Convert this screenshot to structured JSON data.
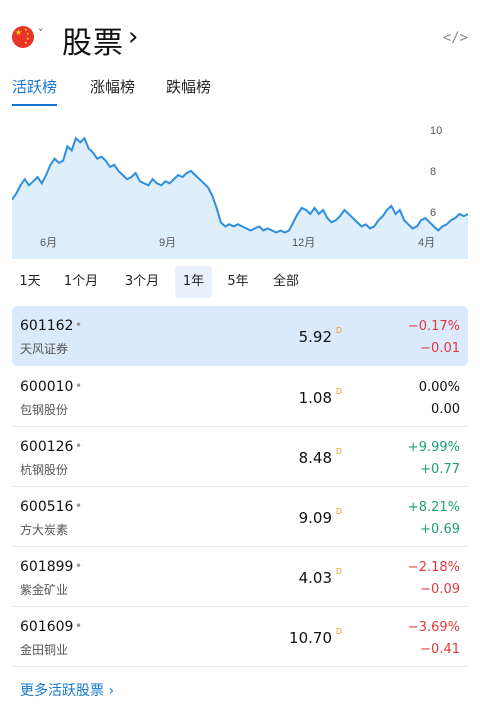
{
  "header": {
    "title": "股票",
    "title_chevron": "›",
    "dropdown_caret": "˅",
    "embed_icon": "</>"
  },
  "tabs": [
    {
      "label": "活跃榜",
      "active": true
    },
    {
      "label": "涨幅榜",
      "active": false
    },
    {
      "label": "跌幅榜",
      "active": false
    }
  ],
  "chart_data": {
    "type": "area",
    "y_ticks": [
      "10",
      "8",
      "6"
    ],
    "x_ticks": [
      "6月",
      "9月",
      "12月",
      "4月"
    ],
    "ylim": [
      4.8,
      10.6
    ],
    "values": [
      6.6,
      6.9,
      7.3,
      7.6,
      7.3,
      7.5,
      7.7,
      7.4,
      7.8,
      8.3,
      8.6,
      8.4,
      8.5,
      9.2,
      9.0,
      9.6,
      9.4,
      9.6,
      9.1,
      8.9,
      8.6,
      8.7,
      8.5,
      8.2,
      8.3,
      8.0,
      7.8,
      7.6,
      7.7,
      7.9,
      7.5,
      7.4,
      7.3,
      7.6,
      7.4,
      7.3,
      7.5,
      7.4,
      7.6,
      7.8,
      7.7,
      7.9,
      8.0,
      7.8,
      7.6,
      7.4,
      7.2,
      6.8,
      6.2,
      5.5,
      5.3,
      5.4,
      5.3,
      5.4,
      5.3,
      5.2,
      5.1,
      5.2,
      5.3,
      5.1,
      5.2,
      5.1,
      5.0,
      5.1,
      5.0,
      5.1,
      5.5,
      5.9,
      6.2,
      6.1,
      5.9,
      6.2,
      5.9,
      6.1,
      5.7,
      5.5,
      5.6,
      5.8,
      6.1,
      5.9,
      5.7,
      5.5,
      5.3,
      5.4,
      5.2,
      5.3,
      5.6,
      5.8,
      6.1,
      6.3,
      5.9,
      6.1,
      5.6,
      5.4,
      5.2,
      5.3,
      5.6,
      5.7,
      5.5,
      5.3,
      5.1,
      5.3,
      5.4,
      5.6,
      5.7,
      5.9,
      5.8,
      5.9
    ],
    "color": "#2e8ee0",
    "fill": "#dfeefb"
  },
  "periods": [
    {
      "label": "1天",
      "active": false
    },
    {
      "label": "1个月",
      "active": false
    },
    {
      "label": "3个月",
      "active": false
    },
    {
      "label": "1年",
      "active": true
    },
    {
      "label": "5年",
      "active": false
    },
    {
      "label": "全部",
      "active": false
    }
  ],
  "stocks": [
    {
      "symbol": "601162",
      "dot": "•",
      "name": "天风证券",
      "price": "5.92",
      "d": "D",
      "pct": "−0.17%",
      "chg": "−0.01",
      "dir": "neg",
      "active": true
    },
    {
      "symbol": "600010",
      "dot": "•",
      "name": "包钢股份",
      "price": "1.08",
      "d": "D",
      "pct": "0.00%",
      "chg": "0.00",
      "dir": "flat",
      "active": false
    },
    {
      "symbol": "600126",
      "dot": "•",
      "name": "杭钢股份",
      "price": "8.48",
      "d": "D",
      "pct": "+9.99%",
      "chg": "+0.77",
      "dir": "pos",
      "active": false
    },
    {
      "symbol": "600516",
      "dot": "•",
      "name": "方大炭素",
      "price": "9.09",
      "d": "D",
      "pct": "+8.21%",
      "chg": "+0.69",
      "dir": "pos",
      "active": false
    },
    {
      "symbol": "601899",
      "dot": "•",
      "name": "紫金矿业",
      "price": "4.03",
      "d": "D",
      "pct": "−2.18%",
      "chg": "−0.09",
      "dir": "neg",
      "active": false
    },
    {
      "symbol": "601609",
      "dot": "•",
      "name": "金田铜业",
      "price": "10.70",
      "d": "D",
      "pct": "−3.69%",
      "chg": "−0.41",
      "dir": "neg",
      "active": false
    }
  ],
  "more_link": "更多活跃股票 ›",
  "colors": {
    "accent": "#1677d2",
    "negative": "#e0393e",
    "positive": "#1f9e7a"
  }
}
